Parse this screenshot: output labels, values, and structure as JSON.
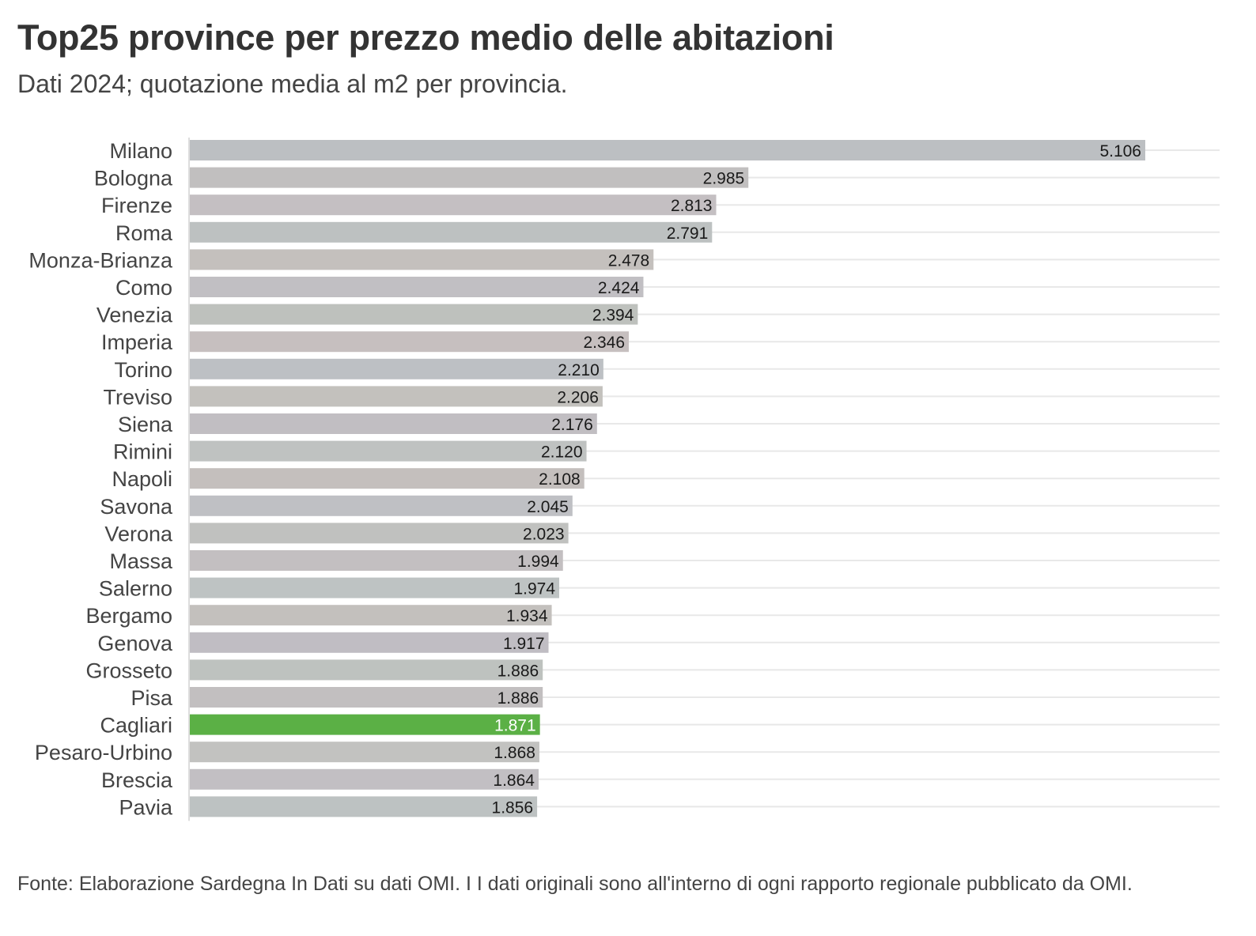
{
  "chart_data": {
    "type": "bar",
    "orientation": "horizontal",
    "title": "Top25 province per prezzo medio delle abitazioni",
    "subtitle": "Dati 2024; quotazione media al m2 per provincia.",
    "categories": [
      "Milano",
      "Bologna",
      "Firenze",
      "Roma",
      "Monza-Brianza",
      "Como",
      "Venezia",
      "Imperia",
      "Torino",
      "Treviso",
      "Siena",
      "Rimini",
      "Napoli",
      "Savona",
      "Verona",
      "Massa",
      "Salerno",
      "Bergamo",
      "Genova",
      "Grosseto",
      "Pisa",
      "Cagliari",
      "Pesaro-Urbino",
      "Brescia",
      "Pavia"
    ],
    "values": [
      5106,
      2985,
      2813,
      2791,
      2478,
      2424,
      2394,
      2346,
      2210,
      2206,
      2176,
      2120,
      2108,
      2045,
      2023,
      1994,
      1974,
      1934,
      1917,
      1886,
      1886,
      1871,
      1868,
      1864,
      1856
    ],
    "value_labels": [
      "5.106",
      "2.985",
      "2.813",
      "2.791",
      "2.478",
      "2.424",
      "2.394",
      "2.346",
      "2.210",
      "2.206",
      "2.176",
      "2.120",
      "2.108",
      "2.045",
      "2.023",
      "1.994",
      "1.974",
      "1.934",
      "1.917",
      "1.886",
      "1.886",
      "1.871",
      "1.868",
      "1.864",
      "1.856"
    ],
    "highlight": "Cagliari",
    "xlim": [
      0,
      5106
    ],
    "xlabel": "",
    "ylabel": "",
    "grid": true,
    "legend": "none",
    "colors": {
      "bar_palette": [
        "#bcbfc2",
        "#c1bfbf",
        "#c4bfc2",
        "#bdc1c1",
        "#c4c0bd",
        "#c1bfc3",
        "#bec1bd",
        "#c6bfbf",
        "#bdc0c4",
        "#c3c1bd",
        "#c1bec2",
        "#bfc2c1",
        "#c4bfbd",
        "#bfc0c4",
        "#c0c1bf",
        "#c3bfc1",
        "#bec3c3",
        "#c3c0bd",
        "#c0bdc3",
        "#bec2bf",
        "#c2bfc0",
        "#5bb045",
        "#c2c2c0",
        "#c2bfc3",
        "#bdc2c2"
      ],
      "highlight_label": "#ffffff",
      "label": "#1a1a1a",
      "category_text": "#444444",
      "gridline": "#e8e8e8",
      "axis_line": "#dddddd"
    }
  },
  "source_note": "Fonte: Elaborazione Sardegna In Dati su dati OMI. I I dati originali sono all'interno di ogni rapporto regionale pubblicato da OMI."
}
